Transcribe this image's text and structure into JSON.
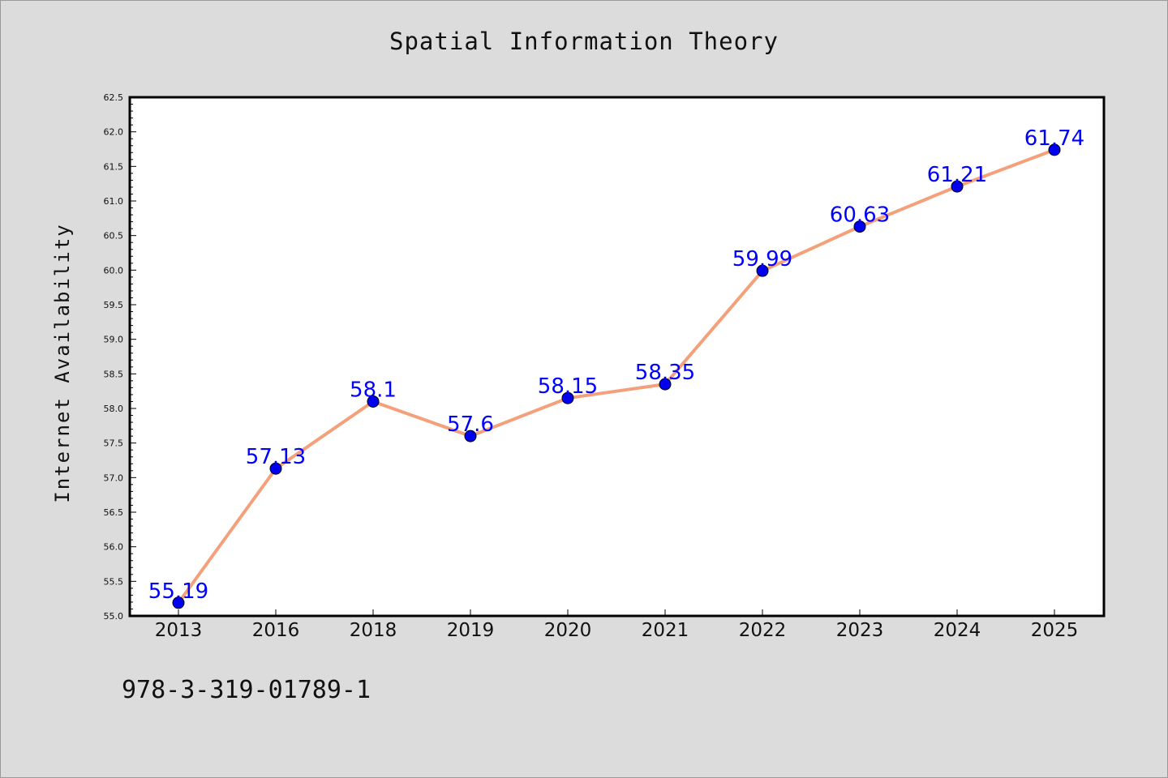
{
  "chart_data": {
    "type": "line",
    "title": "Spatial Information Theory",
    "xlabel": "",
    "ylabel": "Internet Availability",
    "categories": [
      "2013",
      "2016",
      "2018",
      "2019",
      "2020",
      "2021",
      "2022",
      "2023",
      "2024",
      "2025"
    ],
    "series": [
      {
        "values": [
          55.19,
          57.13,
          58.1,
          57.6,
          58.15,
          58.35,
          59.99,
          60.63,
          61.21,
          61.74
        ],
        "labels": [
          "55.19",
          "57.13",
          "58.1",
          "57.6",
          "58.15",
          "58.35",
          "59.99",
          "60.63",
          "61.21",
          "61.74"
        ]
      }
    ],
    "ylim": [
      55.0,
      62.5
    ],
    "yticks": [
      "55.0",
      "55.5",
      "56.0",
      "56.5",
      "57.0",
      "57.5",
      "58.0",
      "58.5",
      "59.0",
      "59.5",
      "60.0",
      "60.5",
      "61.0",
      "61.5",
      "62.0",
      "62.5"
    ],
    "grid": false,
    "colors": {
      "line": "#f4a07a",
      "marker": "#0000ee",
      "label": "#0000ff"
    }
  },
  "footer": {
    "isbn": "978-3-319-01789-1"
  }
}
